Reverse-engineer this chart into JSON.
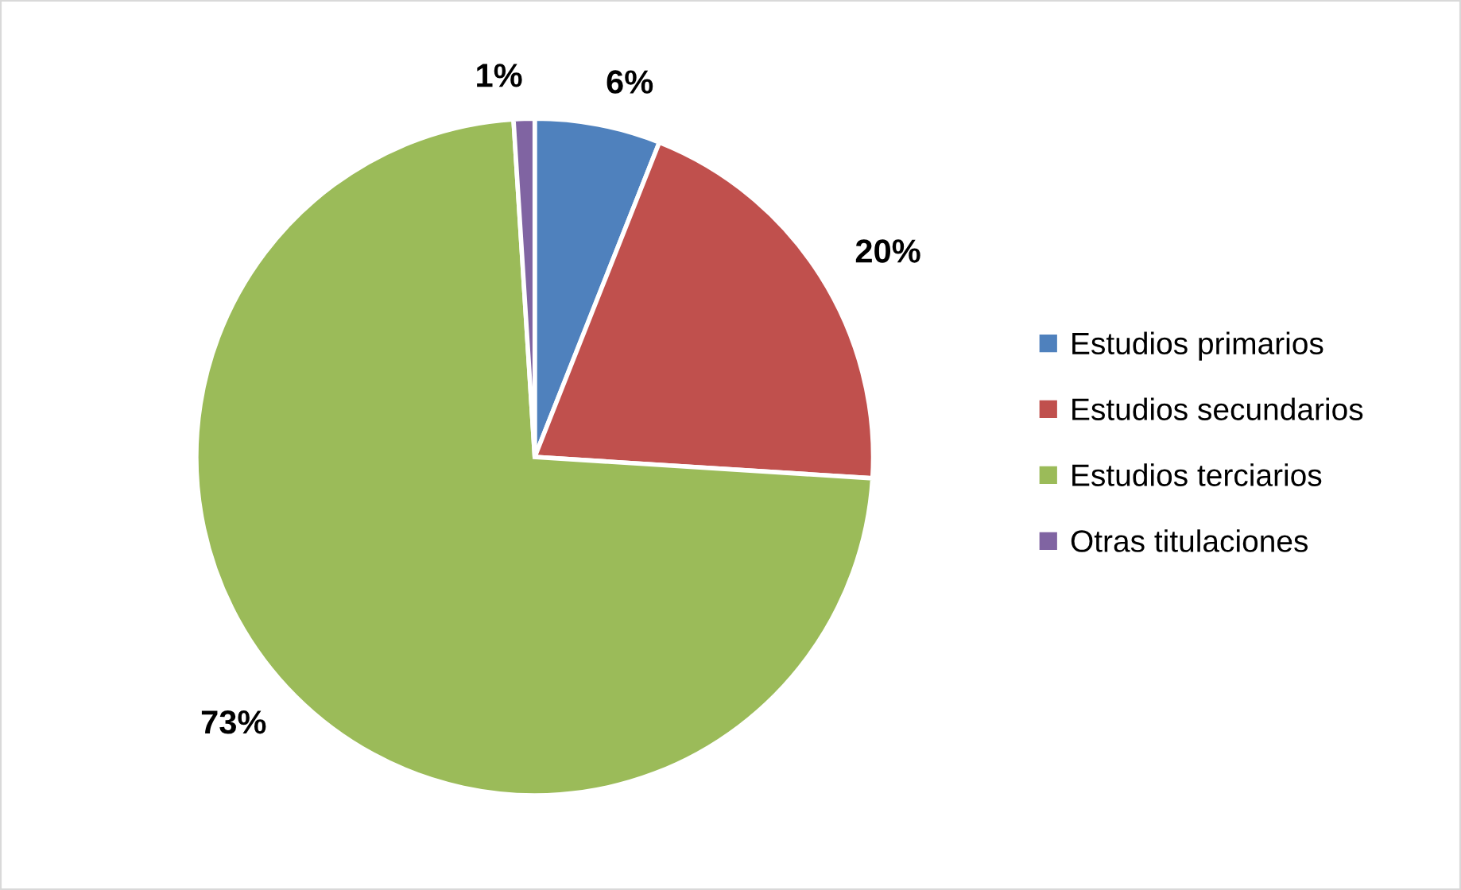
{
  "chart_data": {
    "type": "pie",
    "categories": [
      "Estudios primarios",
      "Estudios secundarios",
      "Estudios terciarios",
      "Otras titulaciones"
    ],
    "values": [
      6,
      20,
      73,
      1
    ],
    "colors": [
      "#4f81bd",
      "#c0504d",
      "#9bbb59",
      "#8064a2"
    ],
    "value_labels": [
      "6%",
      "20%",
      "73%",
      "1%"
    ],
    "legend": "right"
  }
}
